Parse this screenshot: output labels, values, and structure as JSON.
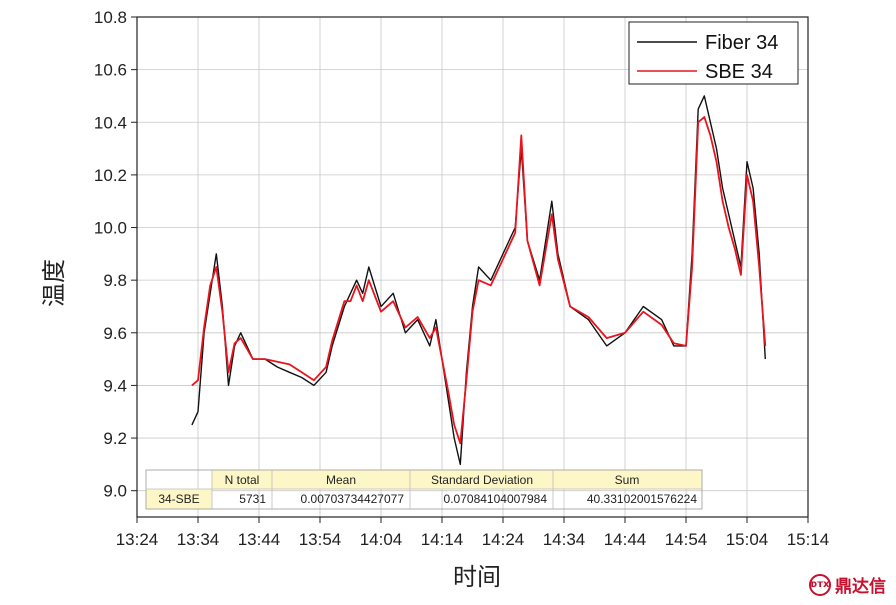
{
  "chart_data": {
    "type": "line",
    "xlabel": "时间",
    "ylabel": "温度",
    "xlim": [
      "13:24",
      "15:14"
    ],
    "ylim": [
      8.9,
      10.8
    ],
    "x_ticks": [
      "13:24",
      "13:34",
      "13:44",
      "13:54",
      "14:04",
      "14:14",
      "14:24",
      "14:34",
      "14:44",
      "14:54",
      "15:04",
      "15:14"
    ],
    "y_ticks": [
      9.0,
      9.2,
      9.4,
      9.6,
      9.8,
      10.0,
      10.2,
      10.4,
      10.6,
      10.8
    ],
    "grid": true,
    "legend_position": "top-right",
    "series": [
      {
        "name": "Fiber 34",
        "color": "#111111",
        "x": [
          "13:33",
          "13:34",
          "13:35",
          "13:36",
          "13:37",
          "13:38",
          "13:39",
          "13:40",
          "13:41",
          "13:43",
          "13:45",
          "13:47",
          "13:49",
          "13:51",
          "13:53",
          "13:55",
          "13:56",
          "13:58",
          "13:59",
          "14:00",
          "14:01",
          "14:02",
          "14:04",
          "14:06",
          "14:08",
          "14:10",
          "14:12",
          "14:13",
          "14:14",
          "14:15",
          "14:16",
          "14:17",
          "14:18",
          "14:19",
          "14:20",
          "14:22",
          "14:24",
          "14:26",
          "14:27",
          "14:28",
          "14:30",
          "14:32",
          "14:33",
          "14:35",
          "14:38",
          "14:41",
          "14:44",
          "14:47",
          "14:50",
          "14:52",
          "14:54",
          "14:55",
          "14:56",
          "14:57",
          "14:58",
          "14:59",
          "15:00",
          "15:01",
          "15:02",
          "15:03",
          "15:04",
          "15:05",
          "15:06",
          "15:07"
        ],
        "y": [
          9.25,
          9.3,
          9.6,
          9.75,
          9.9,
          9.7,
          9.4,
          9.55,
          9.6,
          9.5,
          9.5,
          9.47,
          9.45,
          9.43,
          9.4,
          9.45,
          9.55,
          9.7,
          9.75,
          9.8,
          9.75,
          9.85,
          9.7,
          9.75,
          9.6,
          9.65,
          9.55,
          9.65,
          9.5,
          9.35,
          9.2,
          9.1,
          9.45,
          9.7,
          9.85,
          9.8,
          9.9,
          10.0,
          10.3,
          9.95,
          9.8,
          10.1,
          9.9,
          9.7,
          9.65,
          9.55,
          9.6,
          9.7,
          9.65,
          9.55,
          9.55,
          9.9,
          10.45,
          10.5,
          10.4,
          10.3,
          10.15,
          10.05,
          9.95,
          9.85,
          10.25,
          10.15,
          9.9,
          9.5
        ]
      },
      {
        "name": "SBE 34",
        "color": "#e8141e",
        "x": [
          "13:33",
          "13:34",
          "13:35",
          "13:36",
          "13:37",
          "13:38",
          "13:39",
          "13:40",
          "13:41",
          "13:43",
          "13:45",
          "13:47",
          "13:49",
          "13:51",
          "13:53",
          "13:55",
          "13:56",
          "13:58",
          "13:59",
          "14:00",
          "14:01",
          "14:02",
          "14:04",
          "14:06",
          "14:08",
          "14:10",
          "14:12",
          "14:13",
          "14:14",
          "14:15",
          "14:16",
          "14:17",
          "14:18",
          "14:19",
          "14:20",
          "14:22",
          "14:24",
          "14:26",
          "14:27",
          "14:28",
          "14:30",
          "14:32",
          "14:33",
          "14:35",
          "14:38",
          "14:41",
          "14:44",
          "14:47",
          "14:50",
          "14:52",
          "14:54",
          "14:55",
          "14:56",
          "14:57",
          "14:58",
          "14:59",
          "15:00",
          "15:01",
          "15:02",
          "15:03",
          "15:04",
          "15:05",
          "15:06",
          "15:07"
        ],
        "y": [
          9.4,
          9.42,
          9.62,
          9.78,
          9.85,
          9.68,
          9.45,
          9.56,
          9.58,
          9.5,
          9.5,
          9.49,
          9.48,
          9.45,
          9.42,
          9.47,
          9.57,
          9.72,
          9.72,
          9.78,
          9.72,
          9.8,
          9.68,
          9.72,
          9.62,
          9.66,
          9.58,
          9.62,
          9.5,
          9.38,
          9.25,
          9.18,
          9.42,
          9.68,
          9.8,
          9.78,
          9.88,
          9.98,
          10.35,
          9.95,
          9.78,
          10.05,
          9.88,
          9.7,
          9.66,
          9.58,
          9.6,
          9.68,
          9.63,
          9.56,
          9.55,
          9.85,
          10.4,
          10.42,
          10.35,
          10.25,
          10.1,
          10.0,
          9.92,
          9.82,
          10.2,
          10.1,
          9.85,
          9.55
        ]
      }
    ],
    "stats_table": {
      "headers": [
        "",
        "N total",
        "Mean",
        "Standard Deviation",
        "Sum"
      ],
      "row": [
        "34-SBE",
        "5731",
        "0.00703734427077",
        "0.07084104007984",
        "40.33102001576224"
      ]
    }
  },
  "watermark": {
    "text": "鼎达信",
    "mark": "ᴅᴛx",
    "color": "#c8102e"
  }
}
